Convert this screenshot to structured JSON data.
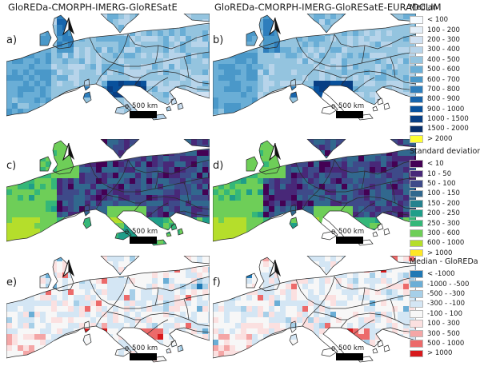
{
  "figure": {
    "column_titles": [
      "GloREDa-CMORPH-IMERG-GloRESatE",
      "GloREDa-CMORPH-IMERG-GloRESatE-EURADCLIM"
    ],
    "panels": [
      {
        "label": "a)",
        "variable": "median",
        "dataset": "GloREDa-CMORPH-IMERG-GloRESatE",
        "coverage": "full"
      },
      {
        "label": "b)",
        "variable": "median",
        "dataset": "GloREDa-CMORPH-IMERG-GloRESatE-EURADCLIM",
        "coverage": "partial"
      },
      {
        "label": "c)",
        "variable": "standard_deviation",
        "dataset": "GloREDa-CMORPH-IMERG-GloRESatE",
        "coverage": "full"
      },
      {
        "label": "d)",
        "variable": "standard_deviation",
        "dataset": "GloREDa-CMORPH-IMERG-GloRESatE-EURADCLIM",
        "coverage": "partial"
      },
      {
        "label": "e)",
        "variable": "median_minus_gloreda",
        "dataset": "GloREDa-CMORPH-IMERG-GloRESatE",
        "coverage": "full"
      },
      {
        "label": "f)",
        "variable": "median_minus_gloreda",
        "dataset": "GloREDa-CMORPH-IMERG-GloRESatE-EURADCLIM",
        "coverage": "partial"
      }
    ],
    "scale_bar": {
      "zero": "0",
      "label": "500 km"
    },
    "north_arrow": "north-arrow-icon"
  },
  "legends": {
    "median": {
      "title": "Median",
      "items": [
        {
          "label": "< 100",
          "color": "#f7fbff"
        },
        {
          "label": "100 - 200",
          "color": "#e3eef8"
        },
        {
          "label": "200 - 300",
          "color": "#d0e1f2"
        },
        {
          "label": "300 - 400",
          "color": "#b7d4ea"
        },
        {
          "label": "400 - 500",
          "color": "#94c4df"
        },
        {
          "label": "500 - 600",
          "color": "#6aaed6"
        },
        {
          "label": "600 - 700",
          "color": "#4a98c9"
        },
        {
          "label": "700 - 800",
          "color": "#2e7ebc"
        },
        {
          "label": "800 - 900",
          "color": "#1764ab"
        },
        {
          "label": "900 - 1000",
          "color": "#08519c"
        },
        {
          "label": "1000 - 1500",
          "color": "#083f84"
        },
        {
          "label": "1500 - 2000",
          "color": "#08306b"
        },
        {
          "label": "> 2000",
          "color": "#ffff33"
        }
      ]
    },
    "standard_deviation": {
      "title": "Standard deviation",
      "items": [
        {
          "label": "< 10",
          "color": "#440154"
        },
        {
          "label": "10 - 50",
          "color": "#482878"
        },
        {
          "label": "50 - 100",
          "color": "#3e4a89"
        },
        {
          "label": "100 - 150",
          "color": "#31688e"
        },
        {
          "label": "150 - 200",
          "color": "#26828e"
        },
        {
          "label": "200 - 250",
          "color": "#1f9e89"
        },
        {
          "label": "250 - 300",
          "color": "#35b779"
        },
        {
          "label": "300 - 600",
          "color": "#6ece58"
        },
        {
          "label": "600 - 1000",
          "color": "#b5de2b"
        },
        {
          "label": "> 1000",
          "color": "#fde725"
        }
      ]
    },
    "median_minus_gloreda": {
      "title": "Median - GloREDa",
      "items": [
        {
          "label": "< -1000",
          "color": "#1f78b4"
        },
        {
          "label": "-1000 - -500",
          "color": "#6baed6"
        },
        {
          "label": "-500 - -300",
          "color": "#a6cfe8"
        },
        {
          "label": "-300 - -100",
          "color": "#d4e6f4"
        },
        {
          "label": "-100 - 100",
          "color": "#f7f7f7"
        },
        {
          "label": "100 - 300",
          "color": "#fbe0e0"
        },
        {
          "label": "300 - 500",
          "color": "#f4a6a6"
        },
        {
          "label": "500 - 1000",
          "color": "#ec6a6a"
        },
        {
          "label": "> 1000",
          "color": "#d7191c"
        }
      ]
    }
  },
  "colors": {
    "sea": "#ffffff",
    "land_outside_coverage": "#ffffff",
    "borders": "#2a2a2a"
  }
}
